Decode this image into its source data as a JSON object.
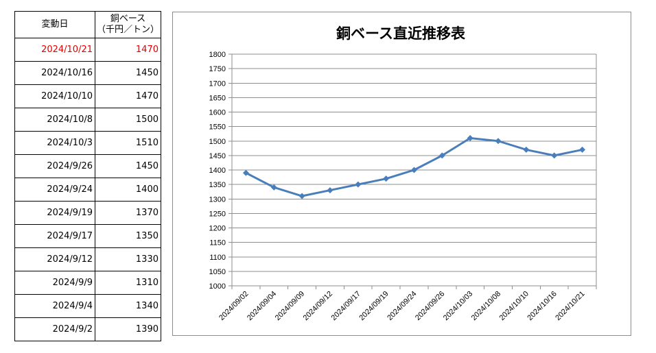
{
  "table": {
    "header": {
      "date": "変動日",
      "price_line1": "銅ベース",
      "price_line2": "（千円／トン）"
    },
    "rows": [
      {
        "date": "2024/10/21",
        "price": "1470",
        "highlight": true
      },
      {
        "date": "2024/10/16",
        "price": "1450",
        "highlight": false
      },
      {
        "date": "2024/10/10",
        "price": "1470",
        "highlight": false
      },
      {
        "date": "2024/10/8",
        "price": "1500",
        "highlight": false
      },
      {
        "date": "2024/10/3",
        "price": "1510",
        "highlight": false
      },
      {
        "date": "2024/9/26",
        "price": "1450",
        "highlight": false
      },
      {
        "date": "2024/9/24",
        "price": "1400",
        "highlight": false
      },
      {
        "date": "2024/9/19",
        "price": "1370",
        "highlight": false
      },
      {
        "date": "2024/9/17",
        "price": "1350",
        "highlight": false
      },
      {
        "date": "2024/9/12",
        "price": "1330",
        "highlight": false
      },
      {
        "date": "2024/9/9",
        "price": "1310",
        "highlight": false
      },
      {
        "date": "2024/9/4",
        "price": "1340",
        "highlight": false
      },
      {
        "date": "2024/9/2",
        "price": "1390",
        "highlight": false
      }
    ],
    "highlight_color": "#e00000"
  },
  "chart_data": {
    "type": "line",
    "title": "銅ベース直近推移表",
    "xlabel": "",
    "ylabel": "",
    "categories": [
      "2024/09/02",
      "2024/09/04",
      "2024/09/09",
      "2024/09/12",
      "2024/09/17",
      "2024/09/19",
      "2024/09/24",
      "2024/09/26",
      "2024/10/03",
      "2024/10/08",
      "2024/10/10",
      "2024/10/16",
      "2024/10/21"
    ],
    "series": [
      {
        "values": [
          1390,
          1340,
          1310,
          1330,
          1350,
          1370,
          1400,
          1450,
          1510,
          1500,
          1470,
          1450,
          1470
        ],
        "color": "#4a7ebb",
        "marker": "diamond"
      }
    ],
    "ylim": [
      1000,
      1800
    ],
    "ytick_step": 50,
    "grid": true,
    "legend": "none"
  }
}
